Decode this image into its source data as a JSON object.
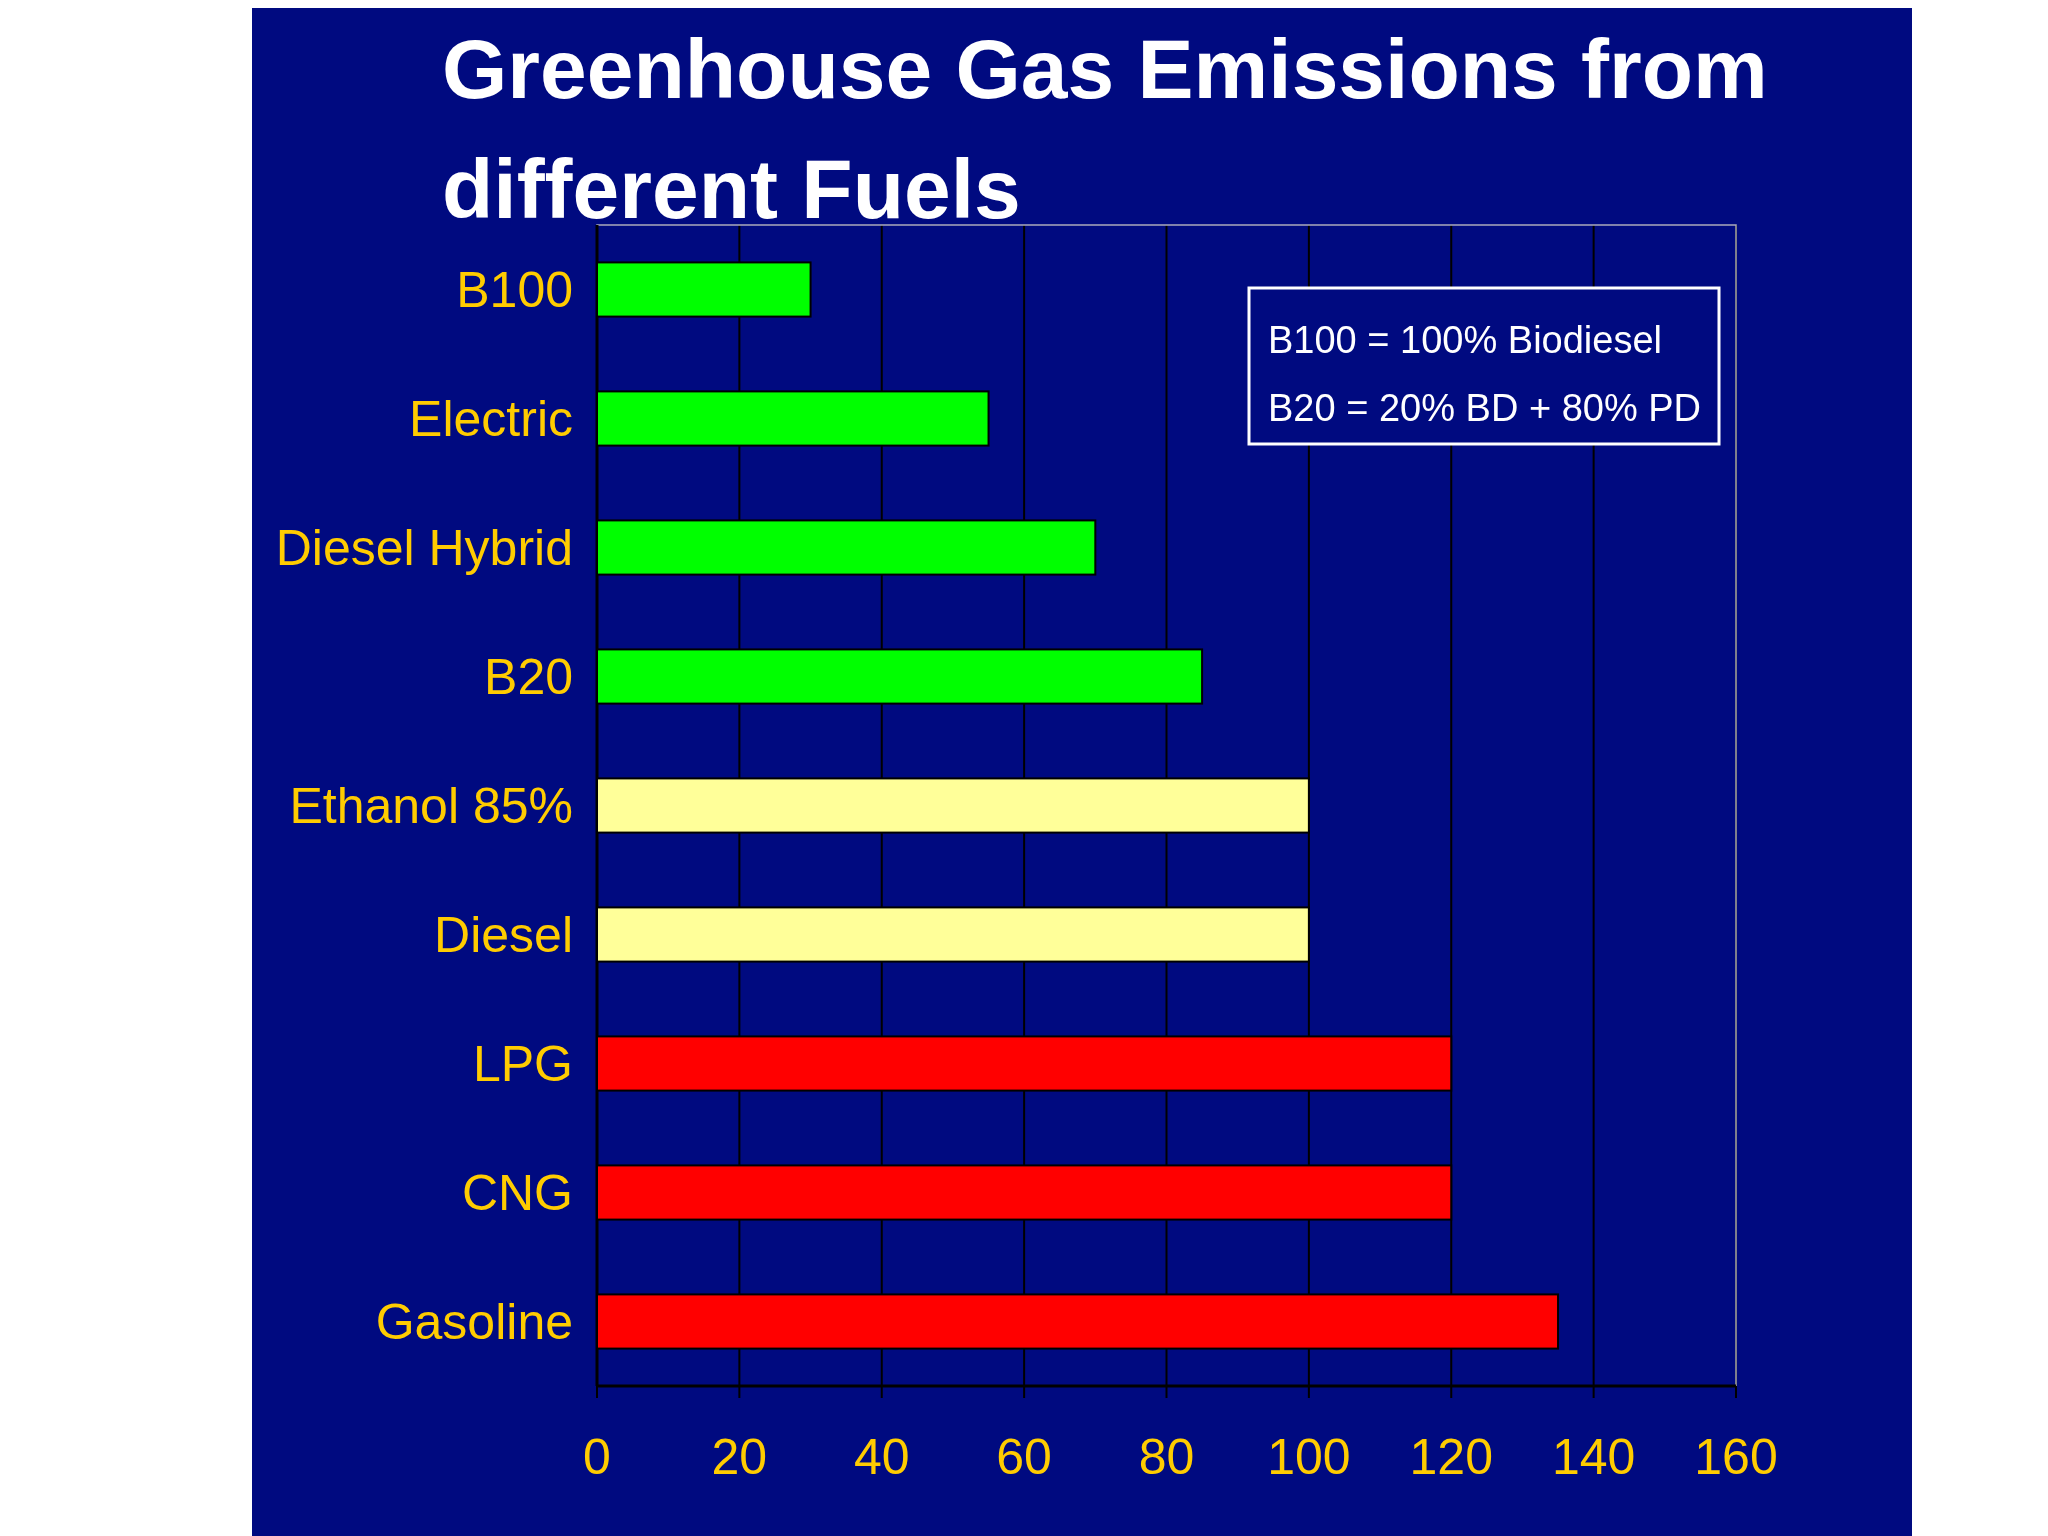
{
  "chart_data": {
    "type": "bar",
    "orientation": "horizontal",
    "title": "Greenhouse Gas Emissions from different Fuels",
    "categories": [
      "B100",
      "Electric",
      "Diesel Hybrid",
      "B20",
      "Ethanol 85%",
      "Diesel",
      "LPG",
      "CNG",
      "Gasoline"
    ],
    "values": [
      30,
      55,
      70,
      85,
      100,
      100,
      120,
      120,
      135
    ],
    "colors": [
      "#00ff00",
      "#00ff00",
      "#00ff00",
      "#00ff00",
      "#ffff99",
      "#ffff99",
      "#ff0000",
      "#ff0000",
      "#ff0000"
    ],
    "xlim": [
      0,
      160
    ],
    "xticks": [
      0,
      20,
      40,
      60,
      80,
      100,
      120,
      140,
      160
    ],
    "grid": "x",
    "annotations": [
      "B100 = 100% Biodiesel",
      "B20 = 20% BD + 80% PD"
    ]
  }
}
